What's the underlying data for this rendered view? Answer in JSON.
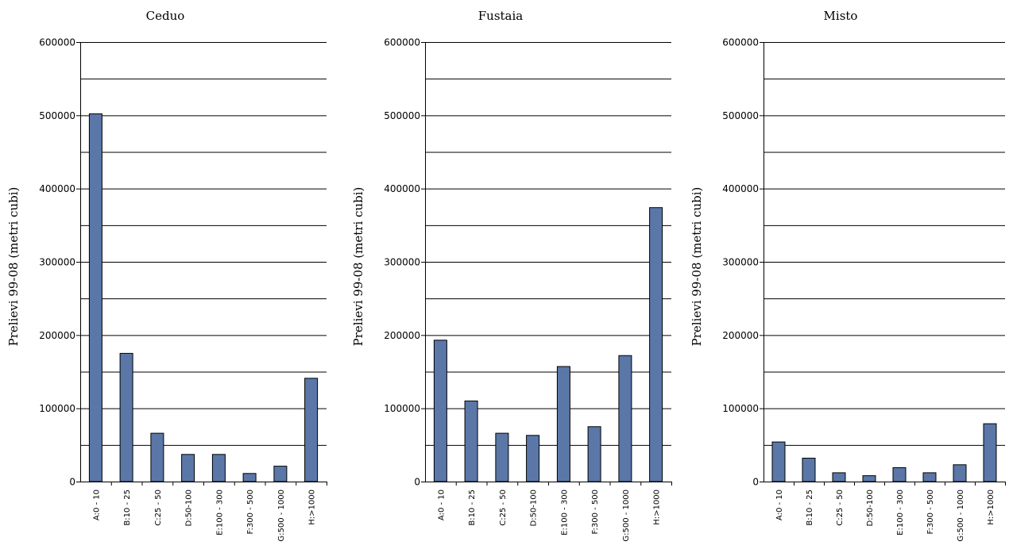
{
  "chart_data": [
    {
      "type": "bar",
      "title": "Ceduo",
      "ylabel": "Prelievi 99-08 (metri cubi)",
      "xlabel": "",
      "ylim": [
        0,
        600000
      ],
      "yticks": [
        "0",
        "100000",
        "200000",
        "300000",
        "400000",
        "500000",
        "600000"
      ],
      "categories": [
        "A:0 - 10",
        "B:10 - 25",
        "C:25 - 50",
        "D:50-100",
        "E:100 - 300",
        "F:300 - 500",
        "G:500 - 1000",
        "H:>1000"
      ],
      "values": [
        502000,
        175000,
        66000,
        37000,
        37000,
        11000,
        21000,
        141000
      ],
      "bar_color": "#5a77a8",
      "grid": true
    },
    {
      "type": "bar",
      "title": "Fustaia",
      "ylabel": "Prelievi 99-08 (metri cubi)",
      "xlabel": "",
      "ylim": [
        0,
        600000
      ],
      "yticks": [
        "0",
        "100000",
        "200000",
        "300000",
        "400000",
        "500000",
        "600000"
      ],
      "categories": [
        "A:0 - 10",
        "B:10 - 25",
        "C:25 - 50",
        "D:50-100",
        "E:100 - 300",
        "F:300 - 500",
        "G:500 - 1000",
        "H:>1000"
      ],
      "values": [
        193000,
        110000,
        66000,
        63000,
        157000,
        75000,
        172000,
        374000
      ],
      "bar_color": "#5a77a8",
      "grid": true
    },
    {
      "type": "bar",
      "title": "Misto",
      "ylabel": "Prelievi 99-08 (metri cubi)",
      "xlabel": "",
      "ylim": [
        0,
        600000
      ],
      "yticks": [
        "0",
        "100000",
        "200000",
        "300000",
        "400000",
        "500000",
        "600000"
      ],
      "categories": [
        "A:0 - 10",
        "B:10 - 25",
        "C:25 - 50",
        "D:50-100",
        "E:100 - 300",
        "F:300 - 500",
        "G:500 - 1000",
        "H:>1000"
      ],
      "values": [
        54000,
        32000,
        12000,
        8000,
        19000,
        12000,
        23000,
        79000
      ],
      "bar_color": "#5a77a8",
      "grid": true
    }
  ]
}
